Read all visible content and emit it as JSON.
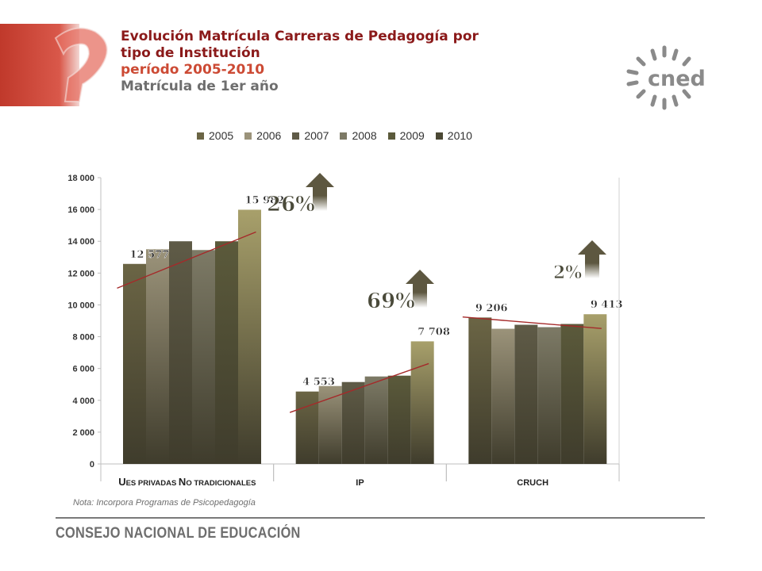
{
  "header": {
    "title_line1": "Evolución Matrícula Carreras de Pedagogía por",
    "title_line2": "tipo de Institución",
    "period": "período 2005-2010",
    "subtitle": "Matrícula de 1er año"
  },
  "logo": {
    "text": "cned"
  },
  "colors": {
    "title": "#8b1a1a",
    "period": "#cc4a34",
    "accent_red": "#c0392b",
    "trend_line": "#a52a2a",
    "arrow": "#5d5740"
  },
  "chart_data": {
    "type": "bar",
    "categories": [
      "Ues privadas No tradicionales",
      "IP",
      "CRUCH"
    ],
    "series": [
      {
        "name": "2005",
        "color": "#6b6545",
        "values": [
          12577,
          4553,
          9206
        ]
      },
      {
        "name": "2006",
        "color": "#9b937a",
        "values": [
          13500,
          4900,
          8500
        ]
      },
      {
        "name": "2007",
        "color": "#5f5b47",
        "values": [
          14000,
          5150,
          8750
        ]
      },
      {
        "name": "2008",
        "color": "#7d7a66",
        "values": [
          13450,
          5500,
          8600
        ]
      },
      {
        "name": "2009",
        "color": "#5b5a3b",
        "values": [
          14000,
          5550,
          8800
        ]
      },
      {
        "name": "2010",
        "color": "#4b4834",
        "values": [
          15982,
          7708,
          9413
        ]
      }
    ],
    "ylim": [
      0,
      18000
    ],
    "yticks": [
      "0",
      "2 000",
      "4 000",
      "6 000",
      "8 000",
      "10 000",
      "12 000",
      "14 000",
      "16 000",
      "18 000"
    ],
    "data_labels": [
      {
        "text": "12 577",
        "group": 0,
        "series": 0
      },
      {
        "text": "15 982",
        "group": 0,
        "series": 5
      },
      {
        "text": "4 553",
        "group": 1,
        "series": 0
      },
      {
        "text": "7 708",
        "group": 1,
        "series": 5
      },
      {
        "text": "9 206",
        "group": 2,
        "series": 0
      },
      {
        "text": "9 413",
        "group": 2,
        "series": 5
      }
    ],
    "growth_labels": [
      "26%",
      "69%",
      "2%"
    ],
    "legend_position": "top",
    "grid": false
  },
  "note": "Nota: Incorpora Programas de Psicopedagogía",
  "footer": "CONSEJO NACIONAL DE EDUCACIÓN"
}
